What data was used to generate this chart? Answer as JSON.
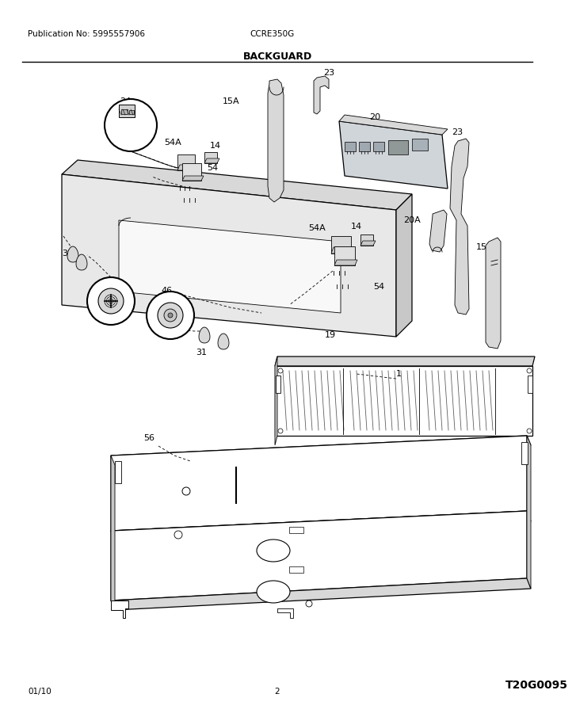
{
  "pub_no": "Publication No: 5995557906",
  "model": "CCRE350G",
  "section": "BACKGUARD",
  "code": "T20G0095",
  "date": "01/10",
  "page": "2",
  "bg_color": "#ffffff",
  "text_color": "#000000",
  "line_color": "#000000",
  "gray_fill": "#e8e8e8",
  "dark_gray": "#c8c8c8",
  "mid_gray": "#d8d8d8"
}
